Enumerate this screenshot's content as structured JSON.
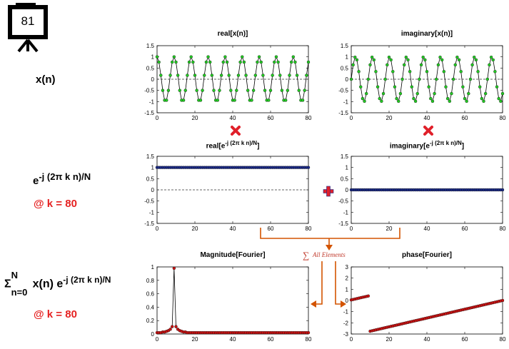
{
  "slide": {
    "number": "81",
    "colors": {
      "accent": "#e52222",
      "marker_green": "#22cc22",
      "marker_navy": "#1a2a8a",
      "marker_red": "#cc1111",
      "arrow": "#d35400",
      "operator_cross": "#e0202a",
      "operator_plus": "#e0202a"
    }
  },
  "rows": {
    "xn": {
      "label": "x(n)"
    },
    "kernel": {
      "base": "e",
      "exponent": "-j (2π k n)/N",
      "k_label": "@ k = 80"
    },
    "dft": {
      "sigma": "Σ",
      "sup": "N",
      "sub": "n=0",
      "expr": "x(n) e",
      "exponent": "-j (2π k n)/N",
      "k_label": "@ k = 80"
    }
  },
  "annotation": {
    "symbol": "∑",
    "text": "All Elements"
  },
  "titles": {
    "real_x": "real[x(n)]",
    "imag_x": "imaginary[x(n)]",
    "real_e_main": "real[e",
    "real_e_sup": "-j (2π k n)/N",
    "real_e_end": "]",
    "imag_e_main": "imaginary[e",
    "imag_e_sup": "-j (2π k n)/N",
    "imag_e_end": "]",
    "magnitude": "Magnitude[Fourier]",
    "phase": "phase[Fourier]"
  },
  "chart_data": [
    {
      "id": "real_x",
      "type": "line",
      "markers": "green",
      "x_range": [
        0,
        80
      ],
      "ylim": [
        -1.5,
        1.5
      ],
      "xticks": [
        0,
        20,
        40,
        60,
        80
      ],
      "yticks": [
        1.5,
        1,
        0.5,
        0,
        -0.5,
        -1,
        -1.5
      ],
      "reference_line": 0,
      "signal": "cos(2π·9n/81), n = 0..80",
      "frequency_bin": 9
    },
    {
      "id": "imag_x",
      "type": "line",
      "markers": "green",
      "x_range": [
        0,
        80
      ],
      "ylim": [
        -1.5,
        1.5
      ],
      "xticks": [
        0,
        20,
        40,
        60,
        80
      ],
      "yticks": [
        1.5,
        1,
        0.5,
        0,
        -0.5,
        -1,
        -1.5
      ],
      "reference_line": 0,
      "signal": "sin(2π·9n/81), n = 0..80",
      "frequency_bin": 9
    },
    {
      "id": "real_e",
      "type": "line",
      "markers": "navy",
      "x_range": [
        0,
        80
      ],
      "ylim": [
        -1.5,
        1.5
      ],
      "xticks": [
        0,
        20,
        40,
        60,
        80
      ],
      "yticks": [
        1.5,
        1,
        0.5,
        0,
        -0.5,
        -1,
        -1.5
      ],
      "reference_line": 0,
      "constant_value": 1
    },
    {
      "id": "imag_e",
      "type": "line",
      "markers": "navy",
      "x_range": [
        0,
        80
      ],
      "ylim": [
        -1.5,
        1.5
      ],
      "xticks": [
        0,
        20,
        40,
        60,
        80
      ],
      "yticks": [
        1.5,
        1,
        0.5,
        0,
        -0.5,
        -1,
        -1.5
      ],
      "constant_value": 0
    },
    {
      "id": "magnitude",
      "type": "line",
      "markers": "red",
      "x_range": [
        0,
        80
      ],
      "ylim": [
        0,
        1
      ],
      "xticks": [
        0,
        20,
        40,
        60,
        80
      ],
      "yticks": [
        1,
        0.8,
        0.6,
        0.4,
        0.2,
        0
      ],
      "points": [
        [
          0,
          0.02
        ],
        [
          1,
          0.02
        ],
        [
          2,
          0.02
        ],
        [
          3,
          0.03
        ],
        [
          4,
          0.03
        ],
        [
          5,
          0.04
        ],
        [
          6,
          0.05
        ],
        [
          7,
          0.07
        ],
        [
          8,
          0.11
        ],
        [
          9,
          0.98
        ],
        [
          10,
          0.11
        ],
        [
          11,
          0.07
        ],
        [
          12,
          0.05
        ],
        [
          13,
          0.04
        ],
        [
          14,
          0.03
        ],
        [
          15,
          0.03
        ],
        [
          16,
          0.02
        ],
        [
          17,
          0.02
        ],
        [
          18,
          0.02
        ],
        [
          19,
          0.02
        ],
        [
          20,
          0.02
        ],
        [
          21,
          0.02
        ],
        [
          22,
          0.02
        ],
        [
          23,
          0.02
        ],
        [
          24,
          0.02
        ],
        [
          25,
          0.02
        ],
        [
          26,
          0.02
        ],
        [
          27,
          0.02
        ],
        [
          28,
          0.02
        ],
        [
          29,
          0.02
        ],
        [
          30,
          0.02
        ],
        [
          31,
          0.02
        ],
        [
          32,
          0.02
        ],
        [
          33,
          0.02
        ],
        [
          34,
          0.02
        ],
        [
          35,
          0.02
        ],
        [
          36,
          0.02
        ],
        [
          37,
          0.02
        ],
        [
          38,
          0.02
        ],
        [
          39,
          0.02
        ],
        [
          40,
          0.02
        ],
        [
          41,
          0.02
        ],
        [
          42,
          0.02
        ],
        [
          43,
          0.02
        ],
        [
          44,
          0.02
        ],
        [
          45,
          0.02
        ],
        [
          46,
          0.02
        ],
        [
          47,
          0.02
        ],
        [
          48,
          0.02
        ],
        [
          49,
          0.02
        ],
        [
          50,
          0.02
        ],
        [
          51,
          0.02
        ],
        [
          52,
          0.02
        ],
        [
          53,
          0.02
        ],
        [
          54,
          0.02
        ],
        [
          55,
          0.02
        ],
        [
          56,
          0.02
        ],
        [
          57,
          0.02
        ],
        [
          58,
          0.02
        ],
        [
          59,
          0.02
        ],
        [
          60,
          0.02
        ],
        [
          61,
          0.02
        ],
        [
          62,
          0.02
        ],
        [
          63,
          0.02
        ],
        [
          64,
          0.02
        ],
        [
          65,
          0.02
        ],
        [
          66,
          0.02
        ],
        [
          67,
          0.02
        ],
        [
          68,
          0.02
        ],
        [
          69,
          0.02
        ],
        [
          70,
          0.02
        ],
        [
          71,
          0.02
        ],
        [
          72,
          0.02
        ],
        [
          73,
          0.02
        ],
        [
          74,
          0.02
        ],
        [
          75,
          0.02
        ],
        [
          76,
          0.02
        ],
        [
          77,
          0.02
        ],
        [
          78,
          0.02
        ],
        [
          79,
          0.02
        ],
        [
          80,
          0.02
        ]
      ]
    },
    {
      "id": "phase",
      "type": "line",
      "markers": "red",
      "x_range": [
        0,
        80
      ],
      "ylim": [
        -3,
        3
      ],
      "xticks": [
        0,
        20,
        40,
        60,
        80
      ],
      "yticks": [
        3,
        2,
        1,
        0,
        -1,
        -2,
        -3
      ],
      "segments": [
        {
          "x": [
            0,
            9
          ],
          "y": [
            0.05,
            0.4
          ]
        },
        {
          "x": [
            10,
            80
          ],
          "y": [
            -2.75,
            0.0
          ]
        }
      ]
    }
  ]
}
